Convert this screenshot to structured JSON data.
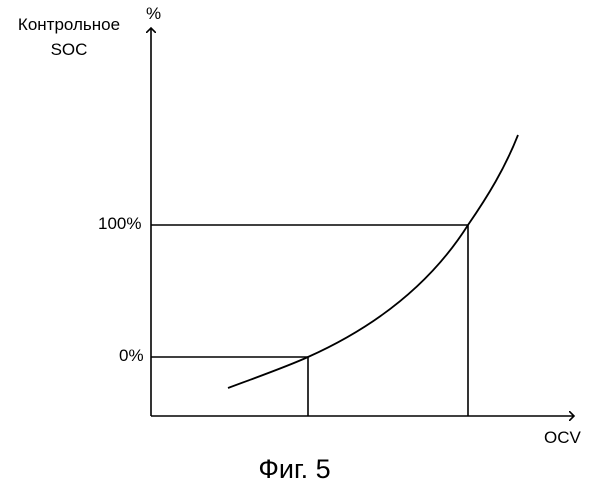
{
  "diagram": {
    "y_axis_label_line1": "Контрольное",
    "y_axis_label_line2": "SOC",
    "y_axis_unit": "%",
    "x_axis_label": "OCV",
    "tick_100": "100%",
    "tick_0": "0%",
    "caption": "Фиг. 5"
  }
}
